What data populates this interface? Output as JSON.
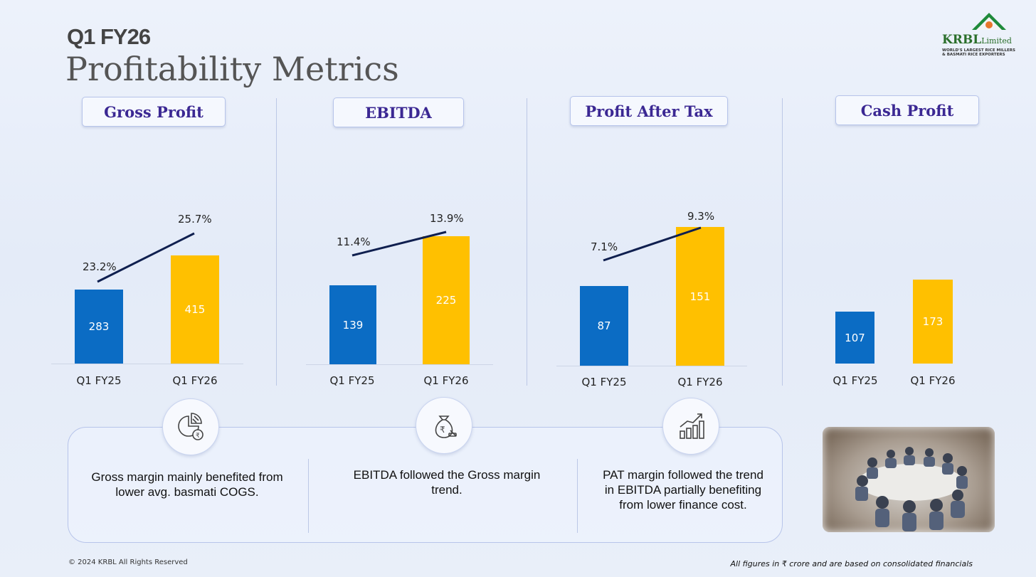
{
  "header": {
    "subtitle": "Q1 FY26",
    "title": "Profitability Metrics"
  },
  "logo": {
    "brand": "KRBL",
    "brand_suffix": "Limited",
    "tagline_1": "WORLD'S LARGEST RICE MILLERS",
    "tagline_2": "& BASMATI RICE EXPORTERS"
  },
  "chart_data": [
    {
      "type": "bar",
      "title": "Gross Profit",
      "categories": [
        "Q1 FY25",
        "Q1 FY26"
      ],
      "values": [
        283,
        415
      ],
      "margin_labels": [
        "23.2%",
        "25.7%"
      ]
    },
    {
      "type": "bar",
      "title": "EBITDA",
      "categories": [
        "Q1 FY25",
        "Q1 FY26"
      ],
      "values": [
        139,
        225
      ],
      "margin_labels": [
        "11.4%",
        "13.9%"
      ]
    },
    {
      "type": "bar",
      "title": "Profit After Tax",
      "categories": [
        "Q1 FY25",
        "Q1 FY26"
      ],
      "values": [
        87,
        151
      ],
      "margin_labels": [
        "7.1%",
        "9.3%"
      ]
    },
    {
      "type": "bar",
      "title": "Cash Profit",
      "categories": [
        "Q1 FY25",
        "Q1 FY26"
      ],
      "values": [
        107,
        173
      ]
    }
  ],
  "colors": {
    "bar_q1fy25": "#0b6cc4",
    "bar_q1fy26": "#ffc000",
    "pill_text": "#3b2893",
    "trend_line": "#0f1f4f"
  },
  "notes": [
    {
      "icon": "pie-chart-rupee-icon",
      "text": "Gross margin mainly benefited from lower avg. basmati COGS."
    },
    {
      "icon": "money-bag-rupee-icon",
      "text": "EBITDA followed the Gross margin trend."
    },
    {
      "icon": "growth-chart-icon",
      "text": "PAT margin followed the trend in EBITDA partially benefiting from lower finance cost."
    }
  ],
  "footer": {
    "copyright": "© 2024 KRBL All Rights Reserved",
    "disclaimer": "All figures in ₹ crore and are based on consolidated financials"
  }
}
